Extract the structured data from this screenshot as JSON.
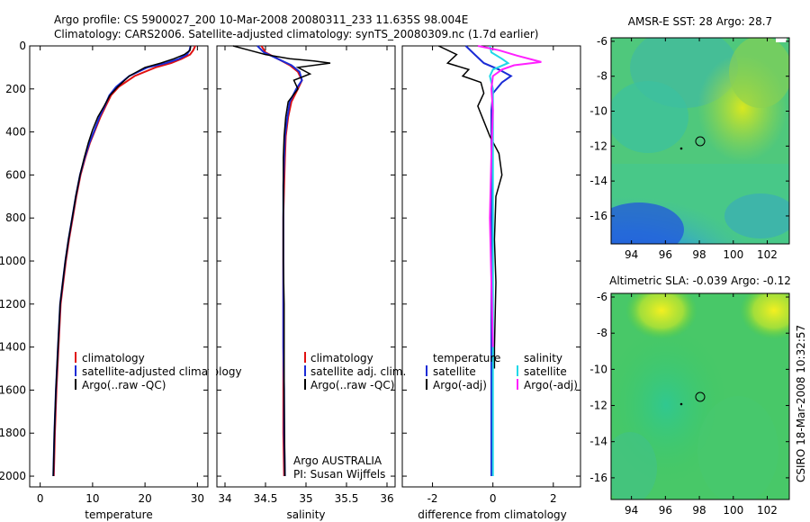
{
  "title": {
    "line1": "Argo profile: CS 5900027_200 10-Mar-2008 20080311_233 11.635S 98.004E",
    "line2": "Climatology: CARS2006. Satellite-adjusted climatology: synTS_20080309.nc (1.7d earlier)"
  },
  "side_note": "CSIRO 18-Mar-2008 10:32:57",
  "colors": {
    "climatology": "#e01010",
    "satellite": "#1a2bd6",
    "argo": "#000000",
    "sal_satellite": "#20d8e8",
    "sal_argo": "#ff20ff"
  },
  "chart_data": [
    {
      "type": "line",
      "name": "temperature-profile",
      "xlabel": "temperature",
      "xlim": [
        -2,
        32
      ],
      "ylim": [
        0,
        2050
      ],
      "xticks": [
        0,
        10,
        20,
        30
      ],
      "yticks": [
        0,
        200,
        400,
        600,
        800,
        1000,
        1200,
        1400,
        1600,
        1800,
        2000
      ],
      "legend": [
        "climatology",
        "satellite-adjusted climatology",
        "Argo(..raw -QC)"
      ],
      "series": [
        {
          "name": "climatology",
          "color": "#e01010",
          "x": [
            29.6,
            29.2,
            28.6,
            27.0,
            25.0,
            22.0,
            18.0,
            15.0,
            13.5,
            12.5,
            11.5,
            10.5,
            9.5,
            8.6,
            7.7,
            6.9,
            6.2,
            5.5,
            4.9,
            4.4,
            3.9,
            3.5,
            3.1,
            2.8,
            2.6
          ],
          "y": [
            0,
            20,
            40,
            60,
            80,
            100,
            140,
            190,
            230,
            280,
            330,
            390,
            450,
            520,
            600,
            700,
            800,
            900,
            1000,
            1100,
            1200,
            1400,
            1600,
            1800,
            2000
          ]
        },
        {
          "name": "satellite-adjusted climatology",
          "color": "#1a2bd6",
          "x": [
            28.7,
            28.5,
            28.0,
            26.5,
            24.0,
            20.5,
            17.0,
            14.5,
            13.2,
            12.3,
            11.3,
            10.4,
            9.4,
            8.5,
            7.6,
            6.8,
            6.1,
            5.4,
            4.8,
            4.3,
            3.8,
            3.4,
            3.0,
            2.7,
            2.5
          ],
          "y": [
            0,
            20,
            40,
            60,
            80,
            100,
            140,
            190,
            230,
            280,
            330,
            390,
            450,
            520,
            600,
            700,
            800,
            900,
            1000,
            1100,
            1200,
            1400,
            1600,
            1800,
            2000
          ]
        },
        {
          "name": "Argo(..raw -QC)",
          "color": "#000000",
          "x": [
            28.7,
            28.6,
            27.5,
            25.5,
            23.0,
            20.0,
            17.0,
            14.8,
            13.3,
            12.2,
            11.0,
            10.0,
            9.2,
            8.4,
            7.6,
            6.8,
            6.1,
            5.4,
            4.8,
            4.3,
            3.8,
            3.4,
            3.0,
            2.7,
            2.5
          ],
          "y": [
            0,
            20,
            40,
            60,
            80,
            100,
            140,
            190,
            230,
            280,
            330,
            390,
            450,
            520,
            600,
            700,
            800,
            900,
            1000,
            1100,
            1200,
            1400,
            1600,
            1800,
            2000
          ]
        }
      ]
    },
    {
      "type": "line",
      "name": "salinity-profile",
      "xlabel": "salinity",
      "xlim": [
        33.9,
        36.1
      ],
      "ylim": [
        0,
        2050
      ],
      "xticks": [
        34,
        34.5,
        35,
        35.5,
        36
      ],
      "yticks": [],
      "legend": [
        "climatology",
        "satellite adj. clim.",
        "Argo(..raw -QC)"
      ],
      "annotations": [
        "Argo AUSTRALIA",
        "PI: Susan Wijffels"
      ],
      "series": [
        {
          "name": "climatology",
          "color": "#e01010",
          "x": [
            34.45,
            34.5,
            34.65,
            34.8,
            34.9,
            34.95,
            34.9,
            34.82,
            34.78,
            34.75,
            34.74,
            34.73,
            34.72,
            34.72,
            34.72,
            34.72,
            34.72,
            34.72,
            34.73
          ],
          "y": [
            0,
            30,
            60,
            90,
            120,
            160,
            200,
            260,
            330,
            420,
            520,
            650,
            800,
            1000,
            1200,
            1400,
            1600,
            1800,
            2000
          ]
        },
        {
          "name": "satellite adj. clim.",
          "color": "#1a2bd6",
          "x": [
            34.4,
            34.48,
            34.65,
            34.82,
            34.92,
            34.95,
            34.88,
            34.8,
            34.77,
            34.74,
            34.73,
            34.72,
            34.72,
            34.72,
            34.72,
            34.72,
            34.73,
            34.73,
            34.74
          ],
          "y": [
            0,
            30,
            60,
            90,
            120,
            160,
            200,
            260,
            330,
            420,
            520,
            650,
            800,
            1000,
            1200,
            1400,
            1600,
            1800,
            2000
          ]
        },
        {
          "name": "Argo(..raw -QC)",
          "color": "#000000",
          "x": [
            34.1,
            34.3,
            34.5,
            34.8,
            35.1,
            35.3,
            34.9,
            35.05,
            34.85,
            34.9,
            34.78,
            34.75,
            34.73,
            34.72,
            34.72,
            34.72,
            34.72,
            34.73,
            34.73,
            34.74
          ],
          "y": [
            0,
            20,
            40,
            60,
            70,
            80,
            100,
            130,
            160,
            200,
            260,
            330,
            420,
            520,
            650,
            800,
            1000,
            1200,
            1600,
            2000
          ]
        }
      ]
    },
    {
      "type": "line",
      "name": "difference-profile",
      "xlabel": "difference from climatology",
      "xlim": [
        -3.0,
        2.9
      ],
      "ylim": [
        0,
        2050
      ],
      "xticks": [
        -2,
        0,
        2
      ],
      "yticks": [],
      "legend_temperature": {
        "header": "temperature",
        "items": [
          "satellite",
          "Argo(-adj)"
        ]
      },
      "legend_salinity": {
        "header": "salinity",
        "items": [
          "satellite",
          "Argo(-adj)"
        ]
      },
      "series": [
        {
          "name": "temperature satellite",
          "color": "#1a2bd6",
          "x": [
            -0.9,
            -0.6,
            -0.3,
            0.2,
            0.6,
            0.3,
            0.0,
            -0.05,
            -0.05,
            -0.05,
            -0.05,
            -0.05
          ],
          "y": [
            0,
            40,
            80,
            110,
            140,
            170,
            220,
            300,
            500,
            800,
            1400,
            2000
          ]
        },
        {
          "name": "temperature Argo(-adj)",
          "color": "#000000",
          "x": [
            -1.8,
            -1.2,
            -1.5,
            -0.8,
            -1.0,
            -0.4,
            -0.3,
            -0.5,
            -0.3,
            -0.1,
            0.2,
            0.3,
            0.1,
            0.05,
            0.1,
            0.05,
            0.05
          ],
          "y": [
            0,
            40,
            80,
            110,
            140,
            170,
            220,
            280,
            350,
            420,
            500,
            600,
            700,
            900,
            1100,
            1400,
            1500
          ]
        },
        {
          "name": "salinity satellite",
          "color": "#20d8e8",
          "x": [
            -0.1,
            -0.05,
            0.3,
            0.5,
            0.0,
            -0.1,
            0.0,
            0.0,
            0.0,
            0.0,
            0.0
          ],
          "y": [
            0,
            30,
            60,
            80,
            110,
            140,
            200,
            400,
            800,
            1400,
            2000
          ]
        },
        {
          "name": "salinity Argo(-adj)",
          "color": "#ff20ff",
          "x": [
            -0.5,
            0.2,
            0.8,
            1.6,
            0.7,
            0.3,
            0.0,
            -0.05,
            0.0,
            -0.05,
            -0.1,
            0.0
          ],
          "y": [
            0,
            20,
            45,
            75,
            90,
            110,
            140,
            200,
            300,
            500,
            800,
            1400
          ]
        }
      ]
    },
    {
      "type": "heatmap",
      "name": "sst-map",
      "title": "AMSR-E SST: 28 Argo: 28.7",
      "xticks": [
        94,
        96,
        98,
        100,
        102
      ],
      "yticks": [
        -6,
        -8,
        -10,
        -12,
        -14,
        -16
      ],
      "xlim": [
        92.8,
        103.3
      ],
      "ylim": [
        -17.6,
        -5.8
      ],
      "marker": {
        "lon": 98.0,
        "lat": -11.6
      }
    },
    {
      "type": "heatmap",
      "name": "sla-map",
      "title": "Altimetric SLA: -0.039 Argo: -0.12",
      "xticks": [
        94,
        96,
        98,
        100,
        102
      ],
      "yticks": [
        -6,
        -8,
        -10,
        -12,
        -14,
        -16
      ],
      "xlim": [
        92.8,
        103.3
      ],
      "ylim": [
        -17.2,
        -5.8
      ],
      "marker": {
        "lon": 98.0,
        "lat": -11.6
      }
    }
  ]
}
